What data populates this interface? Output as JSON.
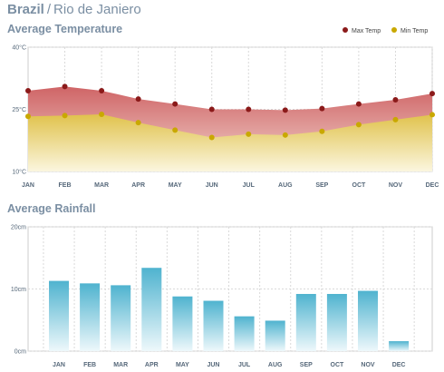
{
  "header": {
    "country": "Brazil",
    "separator": "/",
    "city": "Rio de Janiero"
  },
  "chart_data": [
    {
      "type": "area",
      "title": "Average Temperature",
      "categories": [
        "JAN",
        "FEB",
        "MAR",
        "APR",
        "MAY",
        "JUN",
        "JUL",
        "AUG",
        "SEP",
        "OCT",
        "NOV",
        "DEC"
      ],
      "ylim": [
        10,
        40
      ],
      "yticks": [
        10,
        25,
        40
      ],
      "ytick_labels": [
        "10°C",
        "25°C",
        "40°C"
      ],
      "grid": true,
      "legend_position": "top-right",
      "series": [
        {
          "name": "Max Temp",
          "values": [
            29.5,
            30.5,
            29.5,
            27.5,
            26.3,
            25.0,
            25.0,
            24.8,
            25.2,
            26.3,
            27.3,
            28.8
          ],
          "color": "#8b1a1a"
        },
        {
          "name": "Min Temp",
          "values": [
            23.3,
            23.5,
            23.8,
            21.8,
            20.0,
            18.2,
            19.0,
            18.8,
            19.7,
            21.3,
            22.5,
            23.7
          ],
          "color": "#c9a800"
        }
      ]
    },
    {
      "type": "bar",
      "title": "Average Rainfall",
      "categories": [
        "JAN",
        "FEB",
        "MAR",
        "APR",
        "MAY",
        "JUN",
        "JUL",
        "AUG",
        "SEP",
        "OCT",
        "NOV",
        "DEC"
      ],
      "values": [
        11.3,
        10.9,
        10.6,
        13.4,
        8.8,
        8.1,
        5.6,
        4.9,
        9.2,
        9.2,
        9.7,
        1.6
      ],
      "ylim": [
        0,
        20
      ],
      "yticks": [
        0,
        10,
        20
      ],
      "ytick_labels": [
        "0cm",
        "10cm",
        "20cm"
      ],
      "grid": true,
      "color": "#4fb3cf"
    }
  ]
}
